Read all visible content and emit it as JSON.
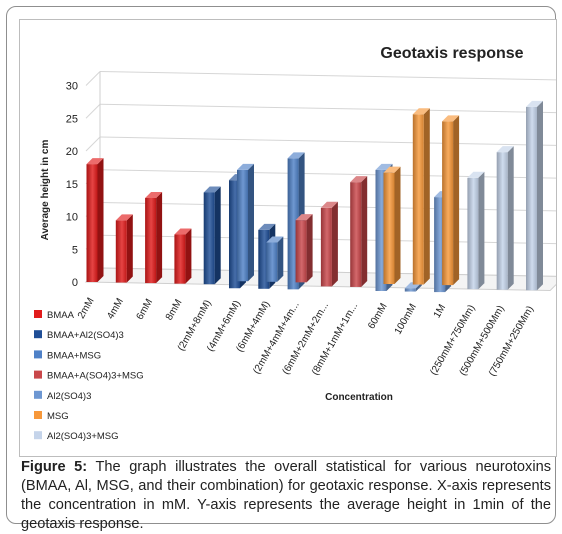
{
  "caption": {
    "label": "Figure 5:",
    "text": "The graph illustrates the overall statistical for various neurotoxins (BMAA, Al, MSG, and their combination) for geotaxic response. X-axis represents the concentration in mM. Y-axis represents the average height in 1min of the geotaxis response."
  },
  "chart_data": {
    "type": "bar",
    "style": "3d-depth",
    "title": "Geotaxis response",
    "xlabel": "Concentration",
    "ylabel": "Average height in cm",
    "ylim": [
      0,
      30
    ],
    "yticks": [
      0,
      5,
      10,
      15,
      20,
      25,
      30
    ],
    "grid": true,
    "legend_position": "left",
    "categories": [
      "2mM",
      "4mM",
      "6mM",
      "8mM",
      "(2mM+8mM)",
      "(4mM+6mM)",
      "(6mM+4mM)",
      "(2mM+4mM+4m...",
      "(6mM+2mM+2m...",
      "(8mM+1mM+1m...",
      "60mM",
      "100mM",
      "1M",
      "(250mM+750Mm)",
      "(500mM+500Mm)",
      "(750mM+250Mm)"
    ],
    "series": [
      {
        "name": "BMAA",
        "color": "#e11b1b",
        "values": [
          18,
          9.5,
          13,
          7.5,
          null,
          null,
          null,
          null,
          null,
          null,
          null,
          null,
          null,
          null,
          null,
          null
        ]
      },
      {
        "name": "BMAA+Al2(SO4)3",
        "color": "#1f4e96",
        "values": [
          null,
          null,
          null,
          null,
          14,
          16.5,
          9,
          null,
          null,
          null,
          null,
          null,
          null,
          null,
          null,
          null
        ]
      },
      {
        "name": "BMAA+MSG",
        "color": "#4f81c7",
        "values": [
          null,
          null,
          null,
          null,
          null,
          17,
          6,
          20,
          null,
          null,
          null,
          null,
          null,
          null,
          null,
          null
        ]
      },
      {
        "name": "BMAA+A(SO4)3+MSG",
        "color": "#c9474a",
        "values": [
          null,
          null,
          null,
          null,
          null,
          null,
          null,
          9.5,
          12,
          16,
          null,
          null,
          null,
          null,
          null,
          null
        ]
      },
      {
        "name": "Al2(SO4)3",
        "color": "#6d97d2",
        "values": [
          null,
          null,
          null,
          null,
          null,
          null,
          null,
          null,
          null,
          null,
          18.5,
          0.5,
          14.5,
          null,
          null,
          null
        ]
      },
      {
        "name": "MSG",
        "color": "#f7983a",
        "values": [
          null,
          null,
          null,
          null,
          null,
          null,
          null,
          null,
          null,
          null,
          17,
          26,
          25,
          null,
          null,
          null
        ]
      },
      {
        "name": "Al2(SO4)3+MSG",
        "color": "#c5d4ea",
        "values": [
          null,
          null,
          null,
          null,
          null,
          null,
          null,
          null,
          null,
          null,
          null,
          null,
          null,
          17,
          21,
          28
        ]
      }
    ]
  }
}
